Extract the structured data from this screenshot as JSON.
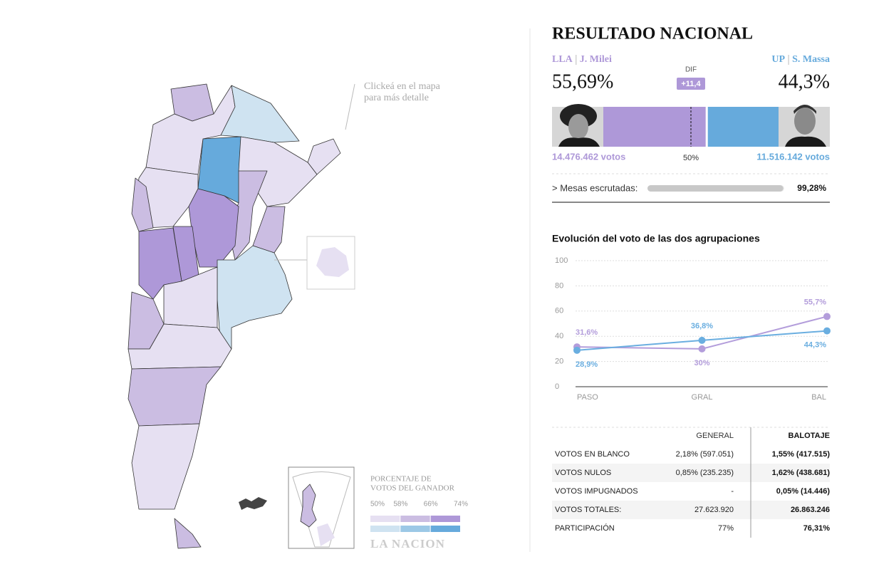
{
  "map": {
    "hint": [
      "Clickeá en el mapa",
      "para más detalle"
    ],
    "legend": {
      "title": [
        "PORCENTAJE DE",
        "VOTOS DEL GANADOR"
      ],
      "ticks": [
        {
          "value": 50,
          "label": "50%"
        },
        {
          "value": 58,
          "label": "58%"
        },
        {
          "value": 66,
          "label": "66%"
        },
        {
          "value": 74,
          "label": "74%"
        }
      ],
      "colors_lla": [
        "#e6e0f2",
        "#cbbde2",
        "#ae98d8"
      ],
      "colors_up": [
        "#cfe3f1",
        "#9cc8e6",
        "#66aadc"
      ]
    },
    "logo": "LA NACION"
  },
  "results": {
    "title": "RESULTADO NACIONAL",
    "left": {
      "party": "LLA",
      "candidate": "J. Milei",
      "color": "#ae98d8",
      "share": {
        "value": 55.69,
        "label": "55,69%"
      },
      "votes": "14.476.462 votos"
    },
    "right": {
      "party": "UP",
      "candidate": "S. Massa",
      "color": "#66aadc",
      "share": {
        "value": 44.3,
        "label": "44,3%"
      },
      "votes": "11.516.142 votos"
    },
    "diff": {
      "title": "DIF",
      "label": "+11,4"
    },
    "midline": {
      "value": 50,
      "label": "50%"
    },
    "counted": {
      "title": "> Mesas escrutadas:",
      "value": 99.28,
      "label": "99,28%"
    }
  },
  "chart_data": {
    "type": "line",
    "title": "Evolución del voto de las dos agrupaciones",
    "categories": [
      "PASO",
      "GRAL",
      "BAL"
    ],
    "series": [
      {
        "color": "#b39ddb",
        "values": [
          31.6,
          30,
          55.7
        ],
        "value_labels": [
          "31,6%",
          "30%",
          "55,7%"
        ]
      },
      {
        "color": "#6aaee0",
        "values": [
          28.9,
          36.8,
          44.3
        ],
        "value_labels": [
          "28,9%",
          "36,8%",
          "44,3%"
        ]
      }
    ],
    "ylim": [
      0,
      100
    ],
    "yticks": [
      0,
      20,
      40,
      60,
      80,
      100
    ],
    "grid": true
  },
  "table": {
    "header": [
      "GENERAL",
      "BALOTAJE"
    ],
    "rows": [
      [
        "VOTOS EN BLANCO",
        "2,18% (597.051)",
        "1,55% (417.515)"
      ],
      [
        "VOTOS NULOS",
        "0,85% (235.235)",
        "1,62% (438.681)"
      ],
      [
        "VOTOS IMPUGNADOS",
        "-",
        "0,05% (14.446)"
      ],
      [
        "VOTOS TOTALES:",
        "27.623.920",
        "26.863.246"
      ],
      [
        "PARTICIPACIÓN",
        "77%",
        "76,31%"
      ]
    ]
  }
}
